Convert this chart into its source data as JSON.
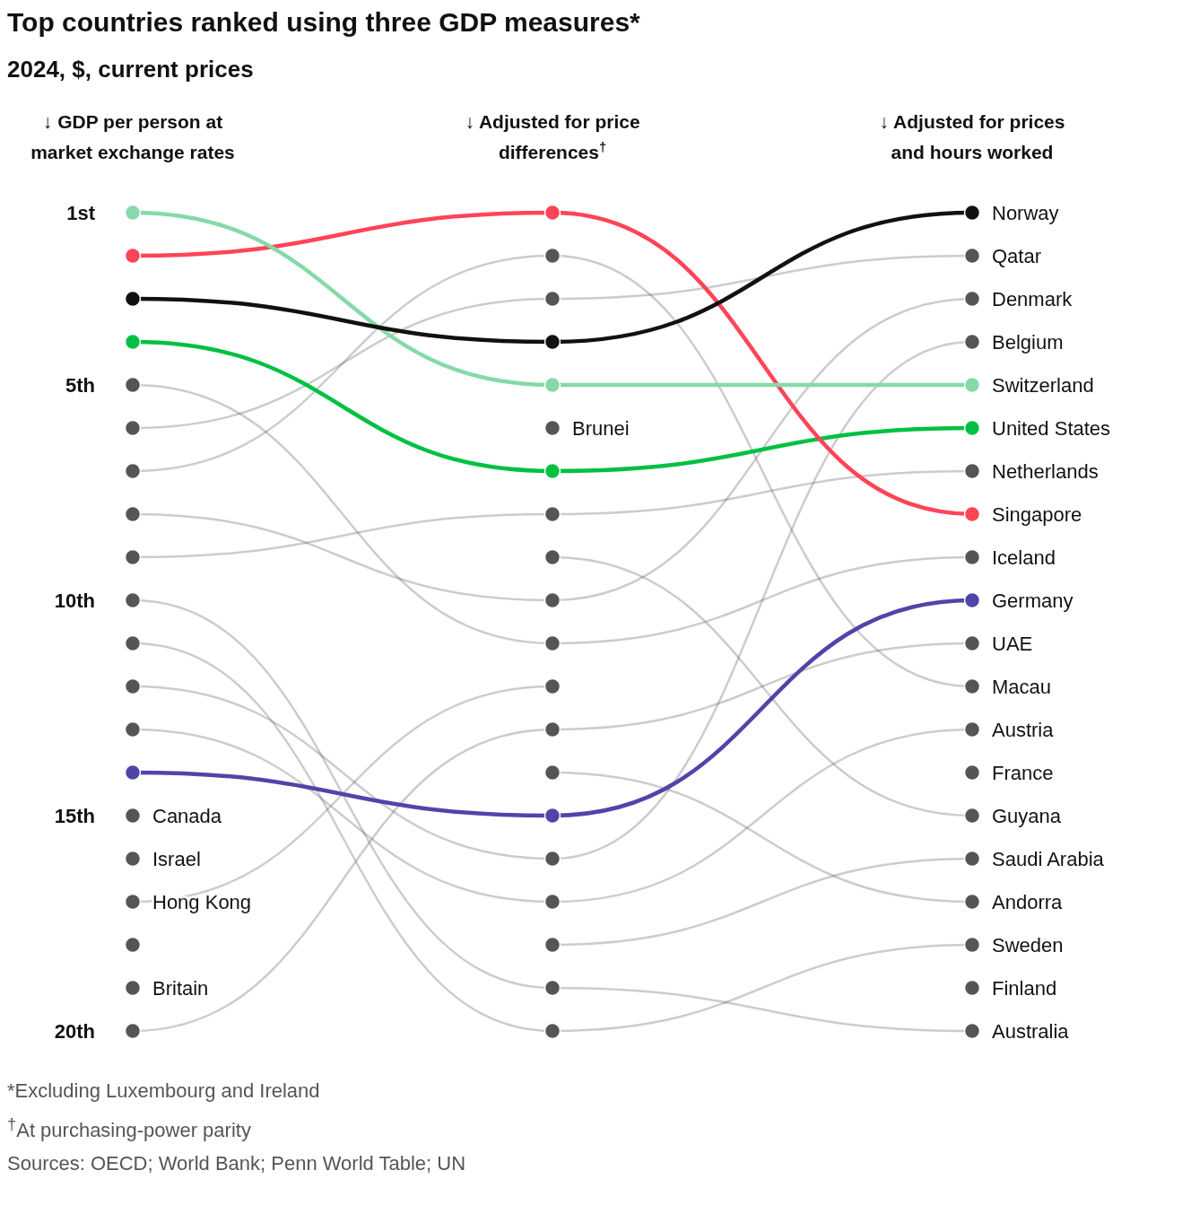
{
  "chart_data": {
    "type": "line",
    "title": "Top countries ranked using three GDP measures*",
    "subtitle": "2024, $, current prices",
    "categories": [
      "↓ GDP per person at market exchange rates",
      "↓ Adjusted for price differences$^{†}$",
      "↓ Adjusted for prices and hours worked"
    ],
    "ylim": [
      20,
      1
    ],
    "yticks": [
      {
        "value": 1,
        "label": "1st"
      },
      {
        "value": 5,
        "label": "5th"
      },
      {
        "value": 10,
        "label": "10th"
      },
      {
        "value": 15,
        "label": "15th"
      },
      {
        "value": 20,
        "label": "20th"
      }
    ],
    "marker": "circle",
    "line_style": "solid",
    "series": [
      {
        "name": "Qatar",
        "color": "#555555",
        "values": [
          6,
          3,
          2
        ]
      },
      {
        "name": "Denmark",
        "color": "#555555",
        "values": [
          8,
          10,
          3
        ]
      },
      {
        "name": "Belgium",
        "color": "#555555",
        "values": [
          12,
          16,
          4
        ]
      },
      {
        "name": "Netherlands",
        "color": "#555555",
        "values": [
          9,
          8,
          7
        ]
      },
      {
        "name": "Iceland",
        "color": "#555555",
        "values": [
          5,
          11,
          9
        ]
      },
      {
        "name": "UAE",
        "color": "#555555",
        "values": [
          20,
          13,
          11
        ]
      },
      {
        "name": "Macau",
        "color": "#555555",
        "values": [
          7,
          2,
          12
        ]
      },
      {
        "name": "Austria",
        "color": "#555555",
        "values": [
          13,
          17,
          13
        ]
      },
      {
        "name": "France",
        "color": "#555555",
        "values": [
          null,
          null,
          14
        ]
      },
      {
        "name": "Guyana",
        "color": "#555555",
        "values": [
          null,
          9,
          15
        ]
      },
      {
        "name": "Saudi Arabia",
        "color": "#555555",
        "values": [
          null,
          18,
          16
        ]
      },
      {
        "name": "Andorra",
        "color": "#555555",
        "values": [
          null,
          14,
          17
        ]
      },
      {
        "name": "Sweden",
        "color": "#555555",
        "values": [
          11,
          20,
          18
        ]
      },
      {
        "name": "Finland",
        "color": "#555555",
        "values": [
          null,
          null,
          19
        ]
      },
      {
        "name": "Australia",
        "color": "#555555",
        "values": [
          10,
          19,
          20
        ]
      },
      {
        "name": "Canada",
        "color": "#555555",
        "values": [
          15,
          null,
          null
        ]
      },
      {
        "name": "Israel",
        "color": "#555555",
        "values": [
          16,
          null,
          null
        ]
      },
      {
        "name": "Hong Kong",
        "color": "#555555",
        "values": [
          17,
          12,
          null
        ]
      },
      {
        "color": "#555555",
        "values": [
          18,
          null,
          null
        ]
      },
      {
        "name": "Britain",
        "color": "#555555",
        "values": [
          19,
          null,
          null
        ]
      },
      {
        "name": "Brunei",
        "color": "#555555",
        "values": [
          null,
          6,
          null
        ]
      },
      {
        "name": "Germany",
        "color": "#4f45a8",
        "values": [
          14,
          15,
          10
        ]
      },
      {
        "name": "United States",
        "color": "#00c043",
        "values": [
          4,
          7,
          6
        ]
      },
      {
        "name": "Singapore",
        "color": "#ff4458",
        "values": [
          2,
          1,
          8
        ]
      },
      {
        "name": "Switzerland",
        "color": "#86d9a8",
        "values": [
          1,
          5,
          5
        ]
      },
      {
        "name": "Norway",
        "color": "#111111",
        "values": [
          3,
          4,
          1
        ]
      }
    ],
    "annotations": [
      "*Excluding Luxembourg and Ireland",
      "$^{†}$At purchasing-power parity",
      "Sources: OECD; World Bank; Penn World Table; UN"
    ]
  }
}
